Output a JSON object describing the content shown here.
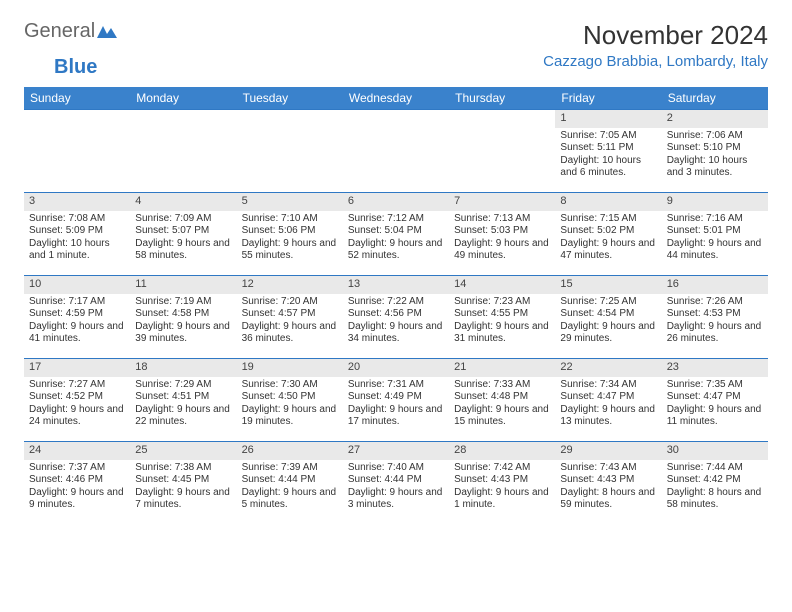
{
  "brand": {
    "part1": "General",
    "part2": "Blue"
  },
  "title": "November 2024",
  "location": "Cazzago Brabbia, Lombardy, Italy",
  "colors": {
    "header_bg": "#3a82cc",
    "header_text": "#ffffff",
    "accent": "#2f78c4",
    "daynum_bg": "#e9e9e9",
    "text": "#333333",
    "background": "#ffffff"
  },
  "dayHeaders": [
    "Sunday",
    "Monday",
    "Tuesday",
    "Wednesday",
    "Thursday",
    "Friday",
    "Saturday"
  ],
  "weeks": [
    [
      {
        "n": "",
        "sr": "",
        "ss": "",
        "dl": ""
      },
      {
        "n": "",
        "sr": "",
        "ss": "",
        "dl": ""
      },
      {
        "n": "",
        "sr": "",
        "ss": "",
        "dl": ""
      },
      {
        "n": "",
        "sr": "",
        "ss": "",
        "dl": ""
      },
      {
        "n": "",
        "sr": "",
        "ss": "",
        "dl": ""
      },
      {
        "n": "1",
        "sr": "Sunrise: 7:05 AM",
        "ss": "Sunset: 5:11 PM",
        "dl": "Daylight: 10 hours and 6 minutes."
      },
      {
        "n": "2",
        "sr": "Sunrise: 7:06 AM",
        "ss": "Sunset: 5:10 PM",
        "dl": "Daylight: 10 hours and 3 minutes."
      }
    ],
    [
      {
        "n": "3",
        "sr": "Sunrise: 7:08 AM",
        "ss": "Sunset: 5:09 PM",
        "dl": "Daylight: 10 hours and 1 minute."
      },
      {
        "n": "4",
        "sr": "Sunrise: 7:09 AM",
        "ss": "Sunset: 5:07 PM",
        "dl": "Daylight: 9 hours and 58 minutes."
      },
      {
        "n": "5",
        "sr": "Sunrise: 7:10 AM",
        "ss": "Sunset: 5:06 PM",
        "dl": "Daylight: 9 hours and 55 minutes."
      },
      {
        "n": "6",
        "sr": "Sunrise: 7:12 AM",
        "ss": "Sunset: 5:04 PM",
        "dl": "Daylight: 9 hours and 52 minutes."
      },
      {
        "n": "7",
        "sr": "Sunrise: 7:13 AM",
        "ss": "Sunset: 5:03 PM",
        "dl": "Daylight: 9 hours and 49 minutes."
      },
      {
        "n": "8",
        "sr": "Sunrise: 7:15 AM",
        "ss": "Sunset: 5:02 PM",
        "dl": "Daylight: 9 hours and 47 minutes."
      },
      {
        "n": "9",
        "sr": "Sunrise: 7:16 AM",
        "ss": "Sunset: 5:01 PM",
        "dl": "Daylight: 9 hours and 44 minutes."
      }
    ],
    [
      {
        "n": "10",
        "sr": "Sunrise: 7:17 AM",
        "ss": "Sunset: 4:59 PM",
        "dl": "Daylight: 9 hours and 41 minutes."
      },
      {
        "n": "11",
        "sr": "Sunrise: 7:19 AM",
        "ss": "Sunset: 4:58 PM",
        "dl": "Daylight: 9 hours and 39 minutes."
      },
      {
        "n": "12",
        "sr": "Sunrise: 7:20 AM",
        "ss": "Sunset: 4:57 PM",
        "dl": "Daylight: 9 hours and 36 minutes."
      },
      {
        "n": "13",
        "sr": "Sunrise: 7:22 AM",
        "ss": "Sunset: 4:56 PM",
        "dl": "Daylight: 9 hours and 34 minutes."
      },
      {
        "n": "14",
        "sr": "Sunrise: 7:23 AM",
        "ss": "Sunset: 4:55 PM",
        "dl": "Daylight: 9 hours and 31 minutes."
      },
      {
        "n": "15",
        "sr": "Sunrise: 7:25 AM",
        "ss": "Sunset: 4:54 PM",
        "dl": "Daylight: 9 hours and 29 minutes."
      },
      {
        "n": "16",
        "sr": "Sunrise: 7:26 AM",
        "ss": "Sunset: 4:53 PM",
        "dl": "Daylight: 9 hours and 26 minutes."
      }
    ],
    [
      {
        "n": "17",
        "sr": "Sunrise: 7:27 AM",
        "ss": "Sunset: 4:52 PM",
        "dl": "Daylight: 9 hours and 24 minutes."
      },
      {
        "n": "18",
        "sr": "Sunrise: 7:29 AM",
        "ss": "Sunset: 4:51 PM",
        "dl": "Daylight: 9 hours and 22 minutes."
      },
      {
        "n": "19",
        "sr": "Sunrise: 7:30 AM",
        "ss": "Sunset: 4:50 PM",
        "dl": "Daylight: 9 hours and 19 minutes."
      },
      {
        "n": "20",
        "sr": "Sunrise: 7:31 AM",
        "ss": "Sunset: 4:49 PM",
        "dl": "Daylight: 9 hours and 17 minutes."
      },
      {
        "n": "21",
        "sr": "Sunrise: 7:33 AM",
        "ss": "Sunset: 4:48 PM",
        "dl": "Daylight: 9 hours and 15 minutes."
      },
      {
        "n": "22",
        "sr": "Sunrise: 7:34 AM",
        "ss": "Sunset: 4:47 PM",
        "dl": "Daylight: 9 hours and 13 minutes."
      },
      {
        "n": "23",
        "sr": "Sunrise: 7:35 AM",
        "ss": "Sunset: 4:47 PM",
        "dl": "Daylight: 9 hours and 11 minutes."
      }
    ],
    [
      {
        "n": "24",
        "sr": "Sunrise: 7:37 AM",
        "ss": "Sunset: 4:46 PM",
        "dl": "Daylight: 9 hours and 9 minutes."
      },
      {
        "n": "25",
        "sr": "Sunrise: 7:38 AM",
        "ss": "Sunset: 4:45 PM",
        "dl": "Daylight: 9 hours and 7 minutes."
      },
      {
        "n": "26",
        "sr": "Sunrise: 7:39 AM",
        "ss": "Sunset: 4:44 PM",
        "dl": "Daylight: 9 hours and 5 minutes."
      },
      {
        "n": "27",
        "sr": "Sunrise: 7:40 AM",
        "ss": "Sunset: 4:44 PM",
        "dl": "Daylight: 9 hours and 3 minutes."
      },
      {
        "n": "28",
        "sr": "Sunrise: 7:42 AM",
        "ss": "Sunset: 4:43 PM",
        "dl": "Daylight: 9 hours and 1 minute."
      },
      {
        "n": "29",
        "sr": "Sunrise: 7:43 AM",
        "ss": "Sunset: 4:43 PM",
        "dl": "Daylight: 8 hours and 59 minutes."
      },
      {
        "n": "30",
        "sr": "Sunrise: 7:44 AM",
        "ss": "Sunset: 4:42 PM",
        "dl": "Daylight: 8 hours and 58 minutes."
      }
    ]
  ]
}
